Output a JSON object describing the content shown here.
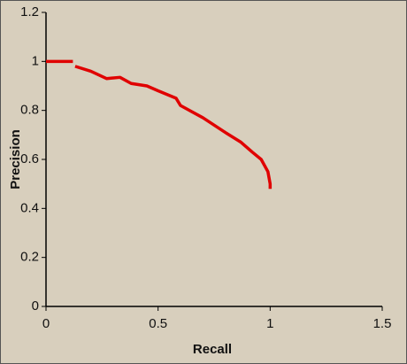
{
  "chart_data": {
    "type": "line",
    "x_label": "Recall",
    "y_label": "Precision",
    "x": [
      0,
      0.12,
      null,
      0.13,
      0.2,
      0.27,
      0.33,
      0.38,
      0.45,
      0.5,
      0.58,
      0.6,
      0.7,
      0.8,
      0.87,
      0.92,
      0.96,
      0.99,
      1.0,
      1.0
    ],
    "values": [
      1.0,
      1.0,
      null,
      0.98,
      0.96,
      0.93,
      0.935,
      0.91,
      0.9,
      0.88,
      0.85,
      0.82,
      0.77,
      0.71,
      0.67,
      0.63,
      0.6,
      0.55,
      0.5,
      0.48
    ],
    "color": "#e00000",
    "xlim": [
      0,
      1.5
    ],
    "xticks": [
      0,
      0.5,
      1,
      1.5
    ],
    "ylim": [
      0,
      1.2
    ],
    "yticks": [
      0,
      0.2,
      0.4,
      0.6,
      0.8,
      1,
      1.2
    ],
    "grid": false
  }
}
